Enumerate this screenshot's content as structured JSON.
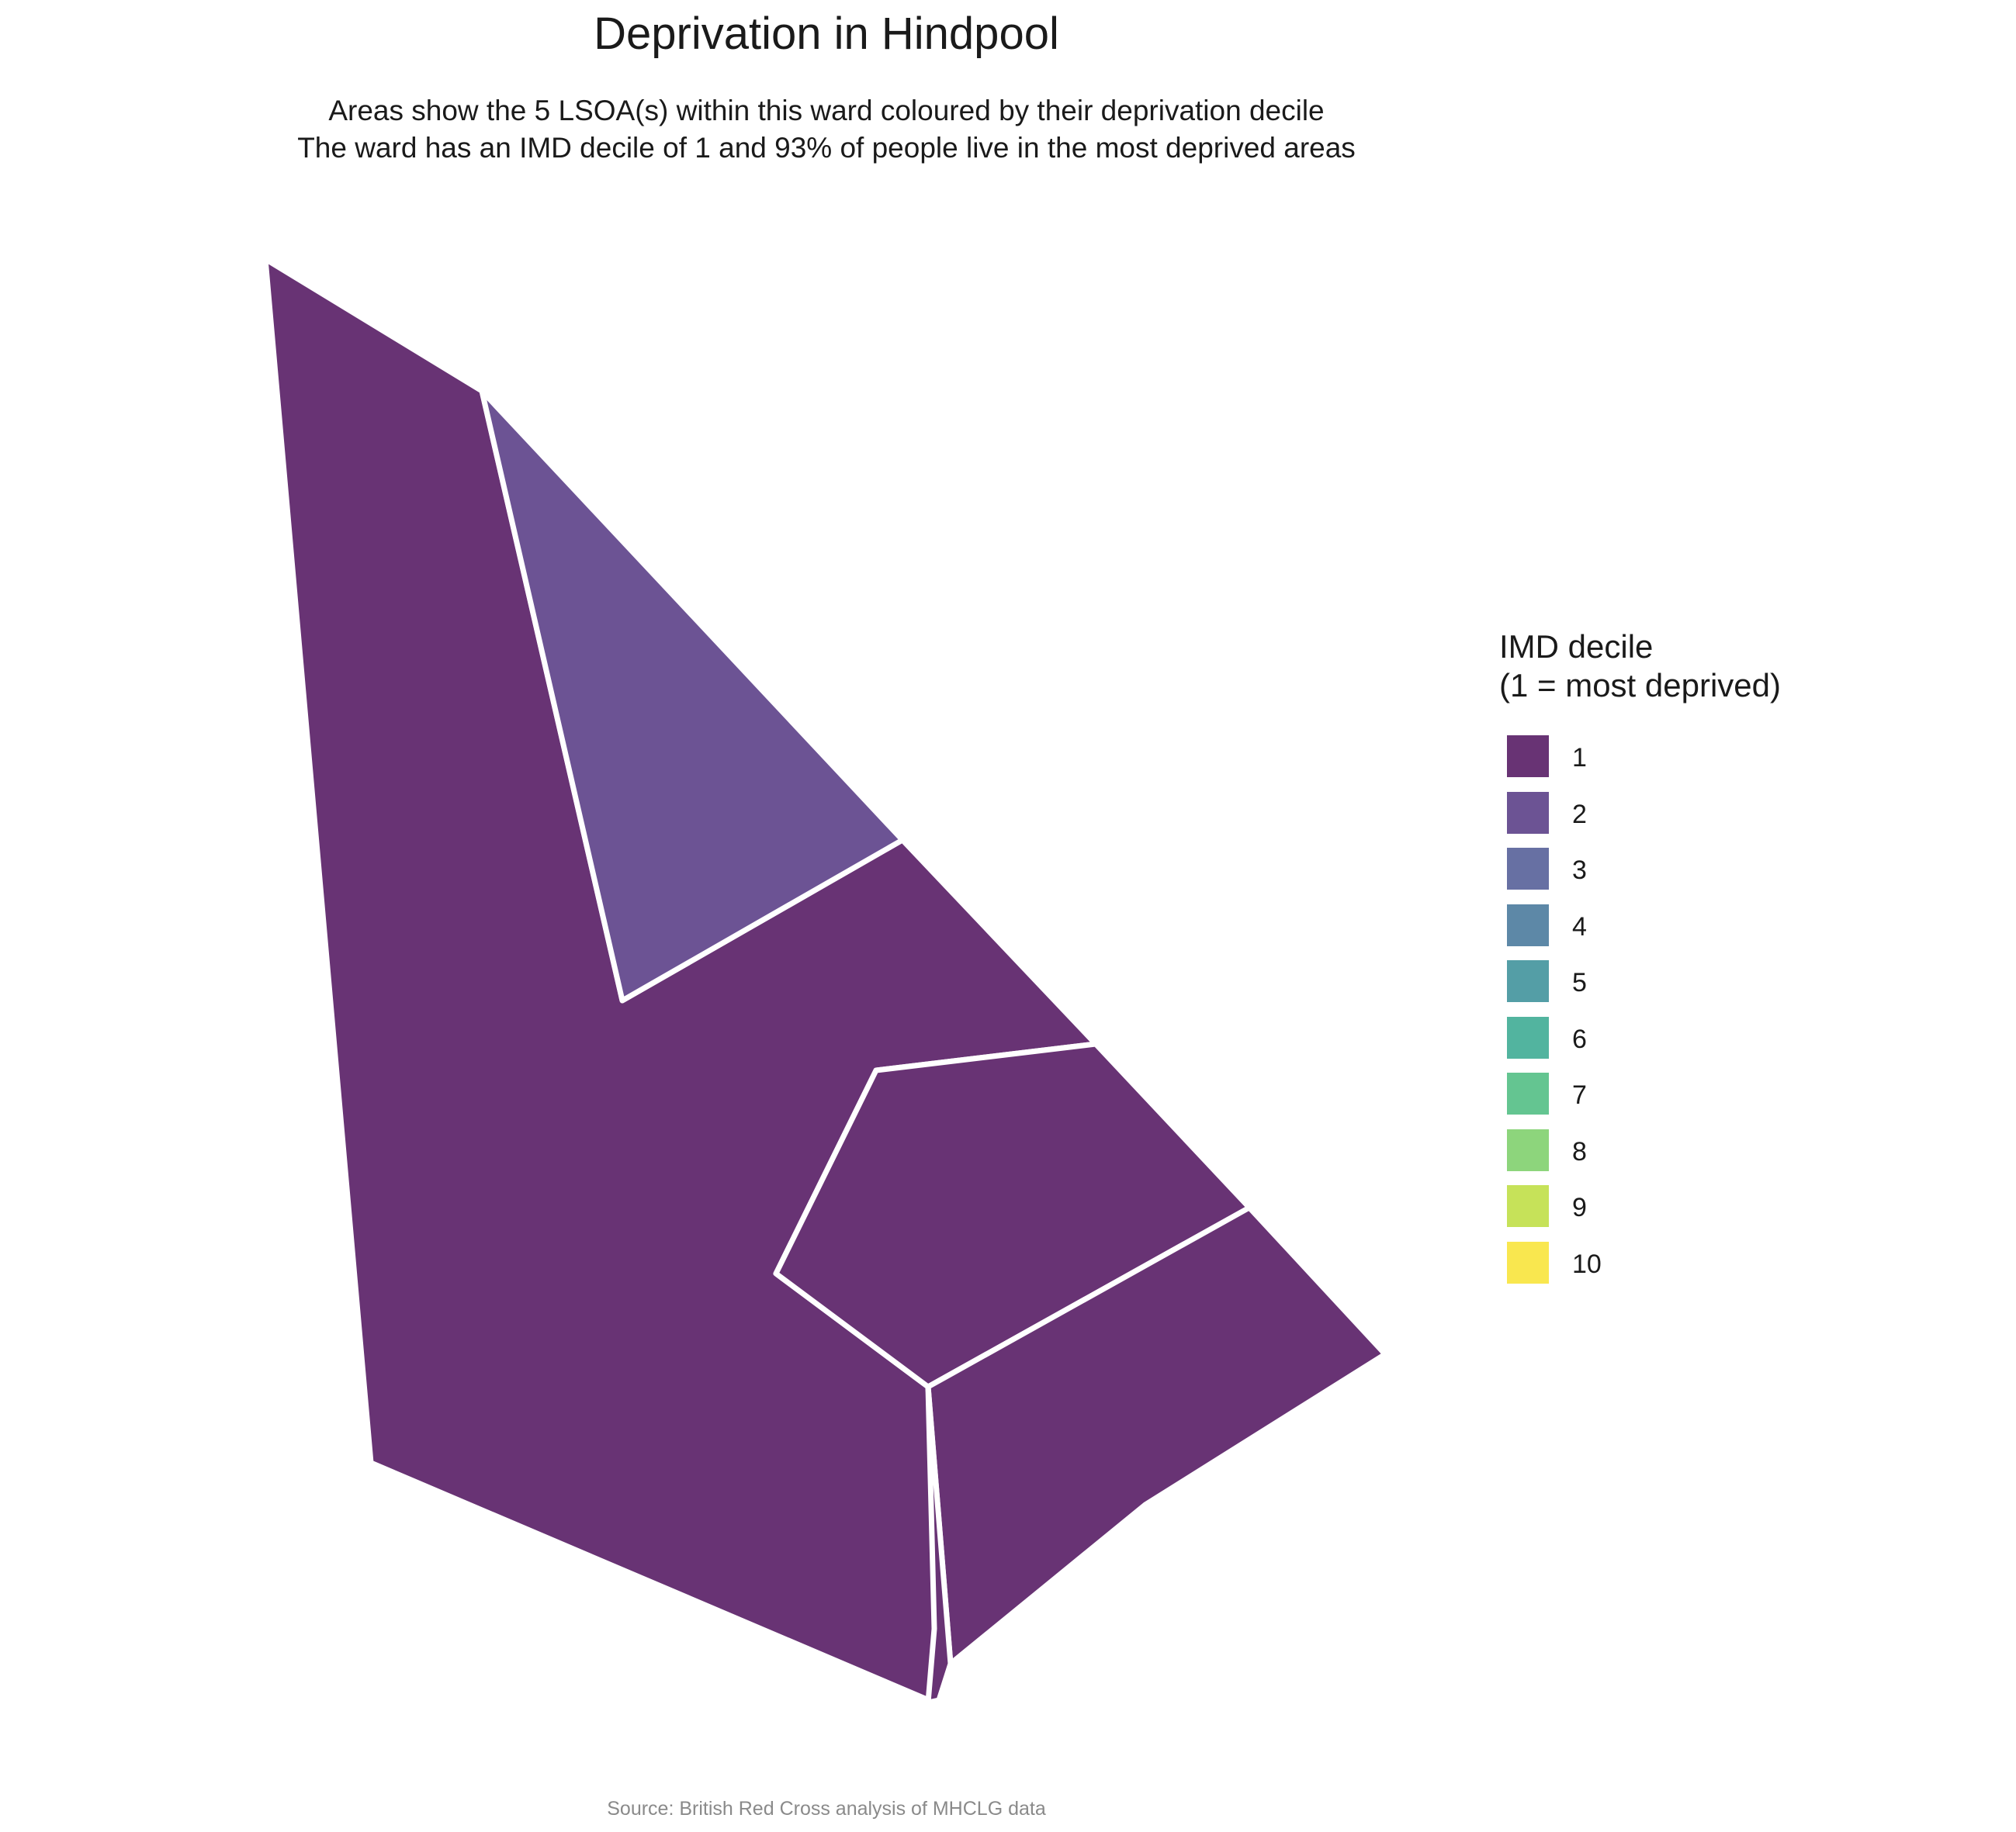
{
  "title": "Deprivation in Hindpool",
  "subtitle_line1": "Areas show the 5 LSOA(s) within this ward coloured by their deprivation decile",
  "subtitle_line2": "The ward has an IMD decile of 1 and 93% of people live in the most deprived areas",
  "caption": "Source: British Red Cross analysis of MHCLG data",
  "legend": {
    "title_line1": "IMD decile",
    "title_line2": "(1 = most deprived)",
    "items": [
      {
        "label": "1",
        "color": "#683374"
      },
      {
        "label": "2",
        "color": "#6c5394"
      },
      {
        "label": "3",
        "color": "#6770a3"
      },
      {
        "label": "4",
        "color": "#5d88a7"
      },
      {
        "label": "5",
        "color": "#549ea6"
      },
      {
        "label": "6",
        "color": "#52b49f"
      },
      {
        "label": "7",
        "color": "#64c591"
      },
      {
        "label": "8",
        "color": "#8dd57c"
      },
      {
        "label": "9",
        "color": "#c6e259"
      },
      {
        "label": "10",
        "color": "#f9e74f"
      }
    ]
  },
  "areas": [
    {
      "id": "lsoa-main",
      "decile": 1
    },
    {
      "id": "lsoa-north",
      "decile": 2
    },
    {
      "id": "lsoa-centre",
      "decile": 1
    },
    {
      "id": "lsoa-south-east",
      "decile": 1
    },
    {
      "id": "lsoa-south",
      "decile": 1
    }
  ]
}
